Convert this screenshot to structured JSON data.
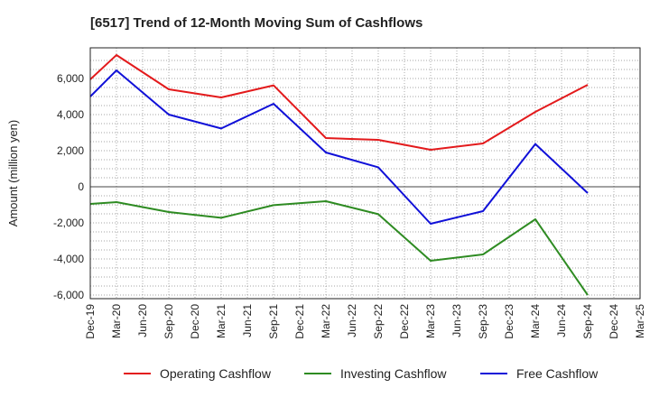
{
  "chart_data": {
    "type": "line",
    "title": "[6517]  Trend of 12-Month Moving Sum of Cashflows",
    "ylabel": "Amount (million yen)",
    "xlabel": "",
    "x": [
      "Dec-19",
      "Mar-20",
      "Jun-20",
      "Sep-20",
      "Dec-20",
      "Mar-21",
      "Jun-21",
      "Sep-21",
      "Dec-21",
      "Mar-22",
      "Jun-22",
      "Sep-22",
      "Dec-22",
      "Mar-23",
      "Jun-23",
      "Sep-23",
      "Dec-23",
      "Mar-24",
      "Jun-24",
      "Sep-24",
      "Dec-24",
      "Mar-25"
    ],
    "ylim": [
      -6200,
      7700
    ],
    "yticks": [
      -6000,
      -4000,
      -2000,
      0,
      2000,
      4000,
      6000
    ],
    "ytick_labels": [
      "-6,000",
      "-4,000",
      "-2,000",
      "0",
      "2,000",
      "4,000",
      "6,000"
    ],
    "grid": true,
    "legend": "bottom",
    "series": [
      {
        "name": "Operating Cashflow",
        "color": "#e31a1c",
        "values": [
          5950,
          7300,
          null,
          5400,
          null,
          4950,
          null,
          5620,
          null,
          2700,
          null,
          2600,
          null,
          2050,
          null,
          2400,
          null,
          4150,
          null,
          5650,
          null,
          null
        ]
      },
      {
        "name": "Investing Cashflow",
        "color": "#2e8b22",
        "values": [
          -950,
          -850,
          null,
          -1400,
          null,
          -1720,
          null,
          -1020,
          null,
          -800,
          null,
          -1520,
          null,
          -4100,
          null,
          -3750,
          null,
          -1800,
          null,
          -6000,
          null,
          null
        ]
      },
      {
        "name": "Free Cashflow",
        "color": "#1010d8",
        "values": [
          5000,
          6450,
          null,
          4000,
          null,
          3230,
          null,
          4600,
          null,
          1900,
          null,
          1080,
          null,
          -2050,
          null,
          -1350,
          null,
          2370,
          null,
          -350,
          null,
          null
        ]
      }
    ]
  }
}
